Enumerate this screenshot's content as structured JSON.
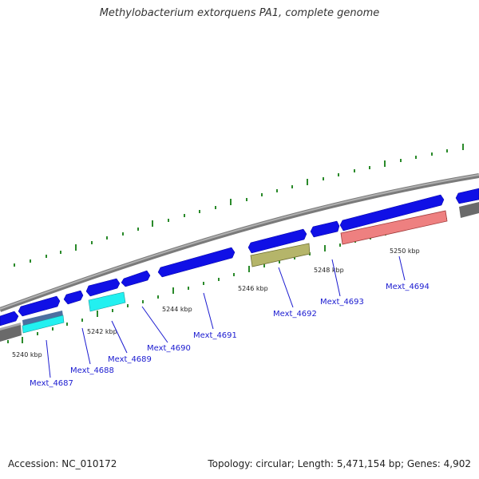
{
  "title": "Methylobacterium extorquens PA1, complete genome",
  "footer": {
    "accession": "Accession: NC_010172",
    "topology": "Topology: circular; Length: 5,471,154 bp; Genes: 4,902"
  },
  "colors": {
    "backbone": "#8c8c8c",
    "forward_gene": "#1010e6",
    "cyan_gene": "#22f0f0",
    "olive_gene": "#b5b56a",
    "pink_gene": "#ee8080",
    "gray_gene": "#707070",
    "tick": "#2a8a2a",
    "label": "#1a1ad0"
  },
  "kbp_labels": [
    "5240 kbp",
    "5242 kbp",
    "5244 kbp",
    "5246 kbp",
    "5248 kbp",
    "5250 kbp"
  ],
  "gene_labels": [
    "Mext_4687",
    "Mext_4688",
    "Mext_4689",
    "Mext_4690",
    "Mext_4691",
    "Mext_4692",
    "Mext_4693",
    "Mext_4694"
  ]
}
